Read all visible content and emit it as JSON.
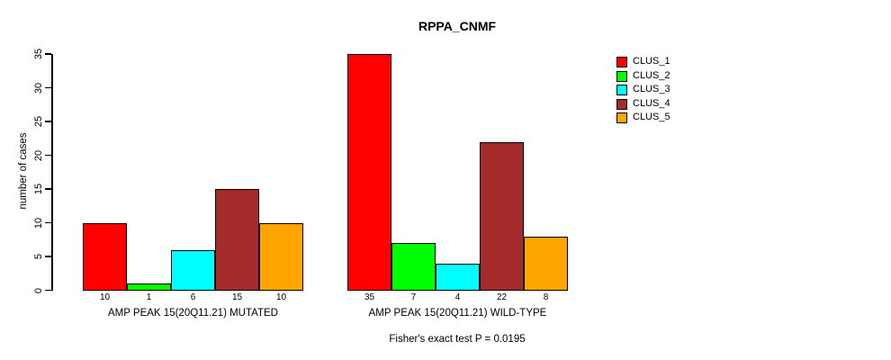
{
  "chart_data": {
    "type": "bar",
    "title": "RPPA_CNMF",
    "ylabel": "number of cases",
    "xlabel": "",
    "ylim": [
      0,
      35
    ],
    "yticks": [
      0,
      5,
      10,
      15,
      20,
      25,
      30,
      35
    ],
    "grid": false,
    "legend_position": "right",
    "categories": [
      "AMP PEAK 15(20Q11.21) MUTATED",
      "AMP PEAK 15(20Q11.21) WILD-TYPE"
    ],
    "series": [
      {
        "name": "CLUS_1",
        "color": "#FF0000",
        "values": [
          10,
          35
        ]
      },
      {
        "name": "CLUS_2",
        "color": "#00FF00",
        "values": [
          1,
          7
        ]
      },
      {
        "name": "CLUS_3",
        "color": "#00FFFF",
        "values": [
          6,
          4
        ]
      },
      {
        "name": "CLUS_4",
        "color": "#A52A2A",
        "values": [
          15,
          22
        ]
      },
      {
        "name": "CLUS_5",
        "color": "#FFA500",
        "values": [
          10,
          8
        ]
      }
    ],
    "bar_value_labels_shown": true,
    "footnote": "Fisher's exact test P = 0.0195",
    "colors": {
      "background": "#FFFFFF",
      "axis": "#000000",
      "text": "#000000"
    }
  }
}
